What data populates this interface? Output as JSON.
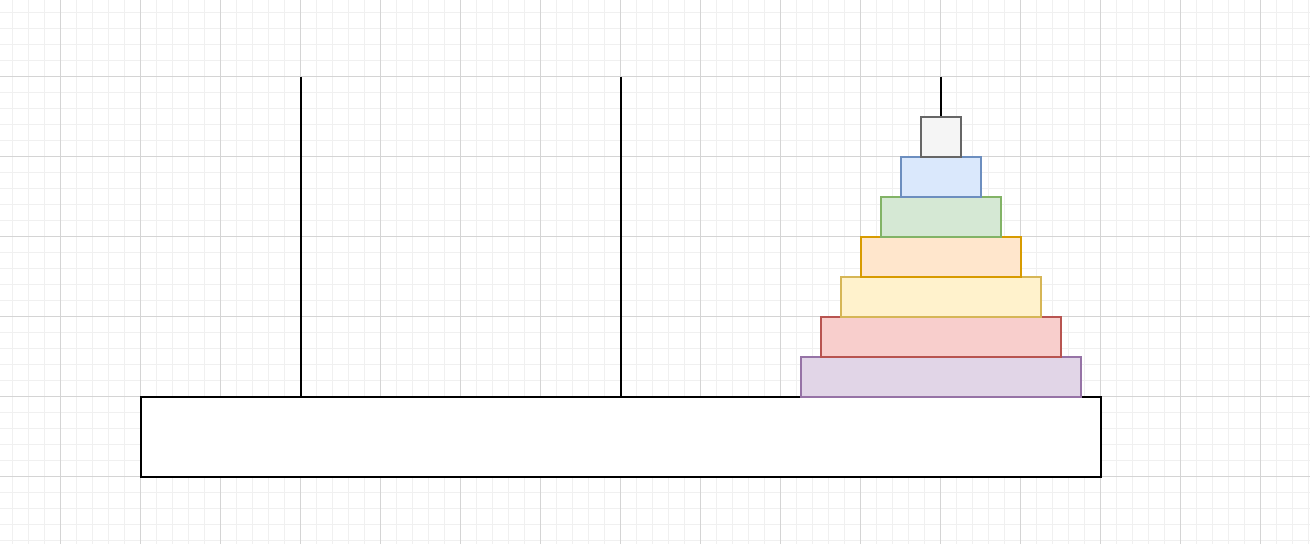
{
  "diagram": {
    "type": "tower-of-hanoi",
    "pegs": [
      {
        "name": "peg-left",
        "disks": []
      },
      {
        "name": "peg-middle",
        "disks": []
      },
      {
        "name": "peg-right",
        "disks": [
          {
            "size": 7,
            "fill": "#e1d5e7",
            "stroke": "#9673a6"
          },
          {
            "size": 6,
            "fill": "#f8cecc",
            "stroke": "#b85450"
          },
          {
            "size": 5,
            "fill": "#fff2cc",
            "stroke": "#d6b656"
          },
          {
            "size": 4,
            "fill": "#ffe6cc",
            "stroke": "#d79b00"
          },
          {
            "size": 3,
            "fill": "#d5e8d4",
            "stroke": "#82b366"
          },
          {
            "size": 2,
            "fill": "#dae8fc",
            "stroke": "#6c8ebf"
          },
          {
            "size": 1,
            "fill": "#f5f5f5",
            "stroke": "#666666"
          }
        ]
      }
    ]
  }
}
